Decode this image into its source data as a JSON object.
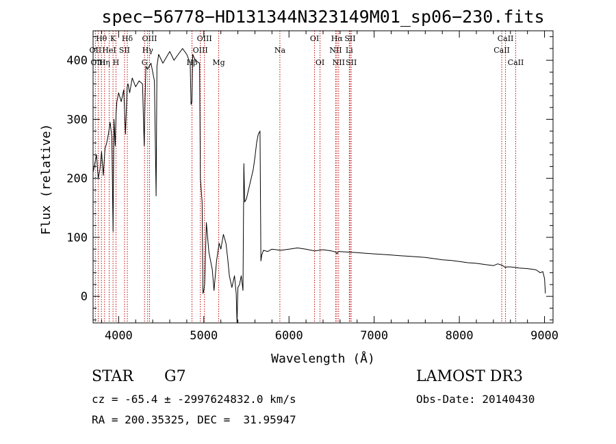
{
  "chart_data": {
    "type": "line",
    "title": "spec−56778−HD131344N323149M01_sp06−230.fits",
    "xlabel": "Wavelength (Å)",
    "ylabel": "Flux (relative)",
    "xlim": [
      3700,
      9100
    ],
    "ylim": [
      -45,
      450
    ],
    "xticks": [
      4000,
      5000,
      6000,
      7000,
      8000,
      9000
    ],
    "xtick_labels": [
      "4000",
      "5000",
      "6000",
      "7000",
      "8000",
      "9000"
    ],
    "yticks": [
      0,
      100,
      200,
      300,
      400
    ],
    "ytick_labels": [
      "0",
      "100",
      "200",
      "300",
      "400"
    ],
    "series": [
      {
        "name": "flux",
        "x": [
          3700,
          3720,
          3740,
          3760,
          3780,
          3800,
          3820,
          3840,
          3860,
          3880,
          3900,
          3920,
          3935,
          3945,
          3960,
          3970,
          3980,
          4000,
          4030,
          4060,
          4080,
          4100,
          4110,
          4130,
          4160,
          4200,
          4240,
          4280,
          4300,
          4310,
          4320,
          4340,
          4380,
          4420,
          4440,
          4450,
          4470,
          4520,
          4600,
          4650,
          4700,
          4750,
          4800,
          4840,
          4850,
          4860,
          4870,
          4900,
          4950,
          4960,
          4980,
          4990,
          5000,
          5010,
          5030,
          5060,
          5100,
          5120,
          5150,
          5180,
          5200,
          5230,
          5260,
          5280,
          5300,
          5330,
          5360,
          5380,
          5390,
          5400,
          5420,
          5440,
          5460,
          5470,
          5480,
          5500,
          5540,
          5580,
          5600,
          5620,
          5640,
          5660,
          5670,
          5680,
          5700,
          5750,
          5800,
          5850,
          5900,
          6000,
          6100,
          6200,
          6300,
          6400,
          6500,
          6550,
          6563,
          6580,
          6700,
          6800,
          6900,
          7000,
          7100,
          7200,
          7300,
          7400,
          7500,
          7600,
          7700,
          7800,
          7900,
          8000,
          8100,
          8200,
          8300,
          8400,
          8450,
          8500,
          8540,
          8560,
          8600,
          8650,
          8700,
          8800,
          8900,
          8950,
          8980,
          9000,
          9010
        ],
        "values": [
          210,
          225,
          240,
          200,
          215,
          245,
          205,
          250,
          260,
          275,
          295,
          270,
          110,
          300,
          255,
          310,
          330,
          345,
          330,
          350,
          275,
          355,
          360,
          345,
          370,
          355,
          365,
          360,
          255,
          330,
          390,
          385,
          395,
          365,
          170,
          390,
          410,
          395,
          415,
          400,
          410,
          420,
          410,
          395,
          325,
          330,
          410,
          400,
          395,
          200,
          160,
          5,
          10,
          20,
          125,
          75,
          45,
          10,
          60,
          90,
          80,
          105,
          90,
          65,
          35,
          15,
          35,
          5,
          -45,
          15,
          20,
          35,
          10,
          225,
          160,
          165,
          190,
          215,
          235,
          260,
          275,
          280,
          60,
          70,
          78,
          76,
          80,
          79,
          78,
          80,
          82,
          80,
          77,
          79,
          77,
          75,
          72,
          76,
          75,
          74,
          73,
          72,
          71,
          70,
          69,
          68,
          67,
          66,
          64,
          62,
          61,
          59,
          57,
          56,
          54,
          52,
          55,
          53,
          49,
          50,
          50,
          49,
          48,
          47,
          45,
          40,
          42,
          30,
          5
        ]
      }
    ],
    "line_markers": [
      {
        "label": "Hθ",
        "x": 3798,
        "row": 0
      },
      {
        "label": "OII",
        "x": 3727,
        "row": 1
      },
      {
        "label": "OIII",
        "x": 3760,
        "row": 2
      },
      {
        "label": "Hη",
        "x": 3835,
        "row": 2
      },
      {
        "label": "HeI",
        "x": 3889,
        "row": 1
      },
      {
        "label": "K",
        "x": 3934,
        "row": 0
      },
      {
        "label": "SII",
        "x": 4069,
        "row": 1
      },
      {
        "label": "H",
        "x": 3969,
        "row": 2
      },
      {
        "label": "Hδ",
        "x": 4102,
        "row": 0
      },
      {
        "label": "OIII",
        "x": 4363,
        "row": 0
      },
      {
        "label": "Hγ",
        "x": 4341,
        "row": 1
      },
      {
        "label": "G",
        "x": 4304,
        "row": 2
      },
      {
        "label": "OIII",
        "x": 5007,
        "row": 0
      },
      {
        "label": "OIII",
        "x": 4959,
        "row": 1
      },
      {
        "label": "Hβ",
        "x": 4861,
        "row": 2
      },
      {
        "label": "Mg",
        "x": 5175,
        "row": 2
      },
      {
        "label": "Na",
        "x": 5893,
        "row": 1
      },
      {
        "label": "OI",
        "x": 6300,
        "row": 0
      },
      {
        "label": "OI",
        "x": 6364,
        "row": 2
      },
      {
        "label": "Hα",
        "x": 6563,
        "row": 0
      },
      {
        "label": "NII",
        "x": 6548,
        "row": 1
      },
      {
        "label": "NII",
        "x": 6583,
        "row": 2
      },
      {
        "label": "SII",
        "x": 6717,
        "row": 0
      },
      {
        "label": "Li",
        "x": 6708,
        "row": 1
      },
      {
        "label": "SII",
        "x": 6731,
        "row": 2
      },
      {
        "label": "CaII",
        "x": 8542,
        "row": 0
      },
      {
        "label": "CaII",
        "x": 8498,
        "row": 1
      },
      {
        "label": "CaII",
        "x": 8662,
        "row": 2
      }
    ],
    "grid": false
  },
  "footer": {
    "object_type": "STAR",
    "subclass": "G7",
    "survey": "LAMOST DR3",
    "cz": "cz = -65.4 ± -2997624832.0 km/s",
    "obs_date": "Obs-Date: 20140430",
    "ra_dec": "RA = 200.35325, DEC =  31.95947"
  },
  "colors": {
    "axis": "#000000",
    "spectrum": "#000000",
    "marker_line": "#c00000"
  }
}
